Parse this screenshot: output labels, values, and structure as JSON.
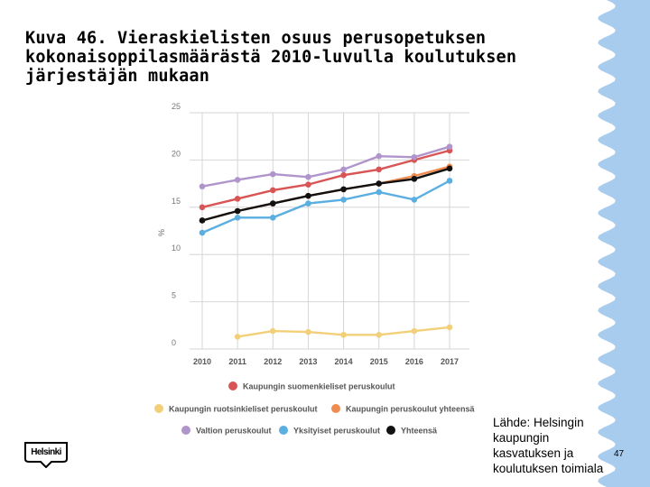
{
  "title_lines": [
    "Kuva 46. Vieraskielisten osuus perusopetuksen",
    "kokonaisoppilasmäärästä 2010-luvulla koulutuksen",
    "järjestäjän mukaan"
  ],
  "source_lines": [
    "Lähde: Helsingin",
    "kaupungin",
    "kasvatuksen ja",
    "koulutuksen toimiala"
  ],
  "page_number": "47",
  "logo_text": "Helsinki",
  "colors": {
    "accent_wave": "#a8ccee"
  },
  "chart_data": {
    "type": "line",
    "title": "",
    "xlabel": "",
    "ylabel": "%",
    "x": [
      "2010",
      "2011",
      "2012",
      "2013",
      "2014",
      "2015",
      "2016",
      "2017"
    ],
    "y_ticks": [
      "0",
      "5",
      "10",
      "15",
      "20",
      "25"
    ],
    "ylim": [
      0,
      25
    ],
    "grid": true,
    "legend_position": "bottom",
    "series": [
      {
        "name": "Kaupungin suomenkieliset peruskoulut",
        "color": "#d95454",
        "values": [
          15.0,
          15.9,
          16.8,
          17.4,
          18.4,
          19.0,
          20.0,
          21.0
        ]
      },
      {
        "name": "Kaupungin ruotsinkieliset peruskoulut",
        "color": "#f2d07a",
        "values": [
          null,
          1.3,
          1.9,
          1.8,
          1.5,
          1.5,
          1.9,
          2.3
        ]
      },
      {
        "name": "Kaupungin peruskoulut yhteensä",
        "color": "#ef8c52",
        "values": [
          13.6,
          14.6,
          15.4,
          16.2,
          16.9,
          17.5,
          18.3,
          19.3
        ]
      },
      {
        "name": "Valtion peruskoulut",
        "color": "#b094cc",
        "values": [
          17.2,
          17.9,
          18.5,
          18.2,
          19.0,
          20.4,
          20.3,
          21.4
        ]
      },
      {
        "name": "Yksityiset peruskoulut",
        "color": "#5aaee0",
        "values": [
          12.3,
          13.9,
          13.9,
          15.4,
          15.8,
          16.6,
          15.8,
          17.8
        ]
      },
      {
        "name": "Yhteensä",
        "color": "#111111",
        "values": [
          13.6,
          14.6,
          15.4,
          16.2,
          16.9,
          17.5,
          18.0,
          19.1
        ]
      }
    ]
  }
}
